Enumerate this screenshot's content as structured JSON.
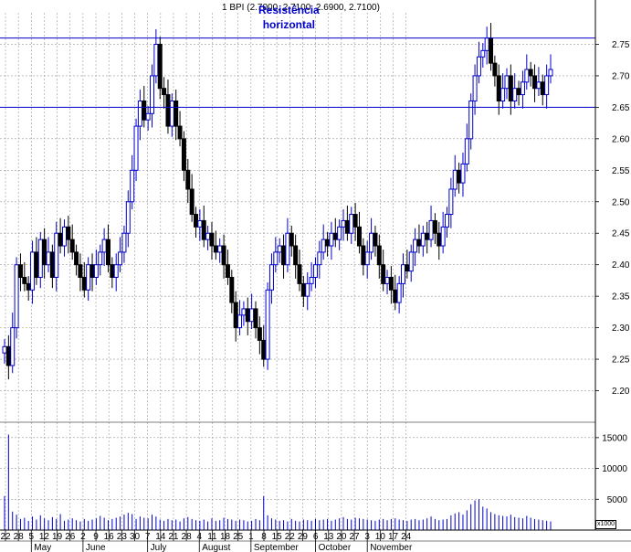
{
  "header": {
    "ticker_line": "1 BPI (2.7000, 2.7100, 2.6900, 2.7100)",
    "annotation_line1": "Resistência",
    "annotation_line2": "horizontal"
  },
  "volume_unit": "x1000",
  "chart_data": {
    "type": "candlestick",
    "symbol": "BPI",
    "last_bar": {
      "open": 2.7,
      "high": 2.71,
      "low": 2.69,
      "close": 2.71
    },
    "price_axis": {
      "ticks": [
        "2.20",
        "2.25",
        "2.30",
        "2.35",
        "2.40",
        "2.45",
        "2.50",
        "2.55",
        "2.60",
        "2.65",
        "2.70",
        "2.75"
      ],
      "ylim": [
        2.15,
        2.8
      ]
    },
    "volume_axis": {
      "ticks": [
        "5000",
        "10000",
        "15000"
      ],
      "ylim": [
        0,
        17500
      ]
    },
    "x_tick_labels": [
      "22",
      "28",
      "5",
      "12",
      "19",
      "26",
      "2",
      "9",
      "16",
      "23",
      "30",
      "7",
      "14",
      "21",
      "28",
      "4",
      "11",
      "18",
      "25",
      "1",
      "8",
      "15",
      "22",
      "29",
      "6",
      "13",
      "20",
      "27",
      "3",
      "10",
      "17",
      "24"
    ],
    "month_labels": [
      "May",
      "June",
      "July",
      "August",
      "September",
      "October",
      "November"
    ],
    "horizontal_lines": [
      2.76,
      2.65
    ],
    "colors": {
      "up": "#0000cc",
      "down": "#000000",
      "line": "#0000cc",
      "volume": "#0000cc",
      "grid": "#999999"
    },
    "grid": true,
    "closes": [
      2.27,
      2.24,
      2.3,
      2.4,
      2.38,
      2.37,
      2.36,
      2.42,
      2.38,
      2.44,
      2.4,
      2.42,
      2.38,
      2.45,
      2.43,
      2.46,
      2.44,
      2.42,
      2.4,
      2.38,
      2.36,
      2.4,
      2.38,
      2.4,
      2.42,
      2.44,
      2.4,
      2.38,
      2.4,
      2.42,
      2.45,
      2.5,
      2.55,
      2.62,
      2.66,
      2.63,
      2.64,
      2.7,
      2.75,
      2.68,
      2.67,
      2.62,
      2.66,
      2.62,
      2.6,
      2.55,
      2.52,
      2.48,
      2.46,
      2.47,
      2.44,
      2.45,
      2.43,
      2.42,
      2.43,
      2.4,
      2.38,
      2.34,
      2.3,
      2.32,
      2.33,
      2.31,
      2.33,
      2.3,
      2.28,
      2.25,
      2.36,
      2.4,
      2.42,
      2.43,
      2.4,
      2.45,
      2.43,
      2.4,
      2.37,
      2.35,
      2.37,
      2.38,
      2.4,
      2.42,
      2.44,
      2.43,
      2.45,
      2.44,
      2.46,
      2.47,
      2.45,
      2.48,
      2.46,
      2.43,
      2.4,
      2.42,
      2.45,
      2.43,
      2.4,
      2.37,
      2.38,
      2.36,
      2.34,
      2.37,
      2.4,
      2.39,
      2.42,
      2.44,
      2.43,
      2.45,
      2.44,
      2.47,
      2.45,
      2.43,
      2.46,
      2.48,
      2.52,
      2.55,
      2.53,
      2.56,
      2.6,
      2.66,
      2.7,
      2.73,
      2.74,
      2.76,
      2.72,
      2.7,
      2.66,
      2.68,
      2.7,
      2.66,
      2.68,
      2.67,
      2.69,
      2.71,
      2.7,
      2.68,
      2.69,
      2.67,
      2.7,
      2.71
    ],
    "volumes": [
      5500,
      15500,
      3000,
      2500,
      1800,
      2000,
      1500,
      2200,
      1700,
      2400,
      1900,
      1600,
      2100,
      1800,
      2600,
      1500,
      1700,
      1900,
      1600,
      1400,
      1800,
      1500,
      1700,
      1900,
      2300,
      2000,
      1600,
      1800,
      2000,
      2200,
      2500,
      2800,
      2600,
      1800,
      2200,
      2000,
      1900,
      2500,
      2200,
      1700,
      1500,
      1800,
      1600,
      1700,
      1400,
      1900,
      2100,
      1800,
      1600,
      1500,
      1700,
      1400,
      1900,
      1500,
      1600,
      2000,
      1800,
      1700,
      1500,
      1700,
      1600,
      1400,
      1500,
      1800,
      1600,
      5500,
      2400,
      1900,
      1700,
      1500,
      1600,
      1400,
      1800,
      1500,
      1400,
      1700,
      1600,
      1500,
      1800,
      1600,
      1700,
      1800,
      1500,
      1700,
      1900,
      2100,
      1800,
      1700,
      2000,
      1900,
      1800,
      1700,
      1600,
      1500,
      1700,
      1800,
      1600,
      1800,
      1900,
      1700,
      1600,
      1500,
      1700,
      1800,
      1600,
      1700,
      1900,
      2200,
      1800,
      1600,
      1700,
      1800,
      2400,
      2700,
      2900,
      2500,
      3200,
      4200,
      4800,
      5000,
      3800,
      3500,
      2900,
      2600,
      2400,
      2300,
      2200,
      2500,
      2100,
      2000,
      1900,
      2300,
      2000,
      1800,
      1700,
      1600,
      1500,
      1400
    ]
  }
}
